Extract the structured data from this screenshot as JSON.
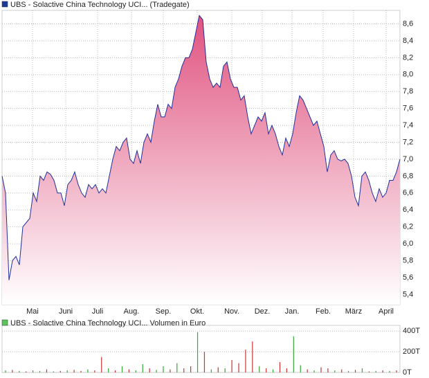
{
  "chart_data": [
    {
      "type": "area",
      "title": "UBS - Solactive China Technology UCI... (Tradegate)",
      "legend_color": "#1f3b9a",
      "color": "#1f2f9a",
      "fill_color": "#e0527f",
      "values": [
        6.8,
        6.6,
        5.57,
        5.8,
        5.85,
        5.75,
        6.2,
        6.25,
        6.3,
        6.6,
        6.5,
        6.8,
        6.75,
        6.85,
        6.82,
        6.75,
        6.6,
        6.6,
        6.45,
        6.7,
        6.75,
        6.85,
        6.7,
        6.6,
        6.55,
        6.7,
        6.65,
        6.7,
        6.6,
        6.65,
        6.6,
        6.8,
        7.0,
        7.15,
        7.1,
        7.2,
        7.25,
        7.0,
        6.95,
        7.1,
        6.95,
        7.2,
        7.3,
        7.2,
        7.45,
        7.65,
        7.5,
        7.5,
        7.65,
        7.6,
        7.85,
        7.95,
        8.1,
        8.2,
        8.2,
        8.3,
        8.5,
        8.7,
        8.65,
        8.15,
        7.95,
        7.85,
        7.9,
        7.85,
        8.1,
        8.15,
        7.95,
        7.85,
        7.85,
        7.7,
        7.75,
        7.5,
        7.3,
        7.4,
        7.5,
        7.45,
        7.55,
        7.3,
        7.4,
        7.3,
        7.15,
        7.05,
        7.25,
        7.15,
        7.3,
        7.55,
        7.75,
        7.7,
        7.6,
        7.5,
        7.4,
        7.45,
        7.3,
        7.15,
        6.85,
        7.05,
        7.1,
        7.0,
        6.98,
        7.0,
        6.95,
        6.8,
        6.55,
        6.45,
        6.8,
        6.85,
        6.75,
        6.6,
        6.5,
        6.65,
        6.55,
        6.6,
        6.75,
        6.75,
        6.85,
        7.0
      ],
      "ylim": [
        5.28,
        8.76
      ],
      "yticks": [
        {
          "value": 5.4,
          "label": "5,4"
        },
        {
          "value": 5.6,
          "label": "5,6"
        },
        {
          "value": 5.8,
          "label": "5,8"
        },
        {
          "value": 6.0,
          "label": "6,0"
        },
        {
          "value": 6.2,
          "label": "6,2"
        },
        {
          "value": 6.4,
          "label": "6,4"
        },
        {
          "value": 6.6,
          "label": "6,6"
        },
        {
          "value": 6.8,
          "label": "6,8"
        },
        {
          "value": 7.0,
          "label": "7,0"
        },
        {
          "value": 7.2,
          "label": "7,2"
        },
        {
          "value": 7.4,
          "label": "7,4"
        },
        {
          "value": 7.6,
          "label": "7,6"
        },
        {
          "value": 7.8,
          "label": "7,8"
        },
        {
          "value": 8.0,
          "label": "8,0"
        },
        {
          "value": 8.2,
          "label": "8,2"
        },
        {
          "value": 8.4,
          "label": "8,4"
        },
        {
          "value": 8.6,
          "label": "8,6"
        }
      ],
      "xlim": [
        0,
        115
      ],
      "xticks": [
        {
          "value": 8.8,
          "label": "Mai"
        },
        {
          "value": 18.4,
          "label": "Juni"
        },
        {
          "value": 27.6,
          "label": "Juli"
        },
        {
          "value": 37.4,
          "label": "Aug."
        },
        {
          "value": 46.6,
          "label": "Sep."
        },
        {
          "value": 56.4,
          "label": "Okt."
        },
        {
          "value": 66.4,
          "label": "Nov."
        },
        {
          "value": 75.2,
          "label": "Dez."
        },
        {
          "value": 83.8,
          "label": "Jan."
        },
        {
          "value": 92.8,
          "label": "Feb."
        },
        {
          "value": 101.6,
          "label": "März"
        },
        {
          "value": 111,
          "label": "April"
        }
      ],
      "grid": true
    },
    {
      "type": "bar",
      "title": "UBS - Solactive China Technology UCI... Volumen in Euro",
      "legend_color": "#5cc45c",
      "values": [
        20,
        25,
        15,
        10,
        20,
        15,
        30,
        10,
        15,
        20,
        25,
        15,
        30,
        20,
        150,
        40,
        20,
        60,
        30,
        20,
        80,
        40,
        25,
        60,
        30,
        90,
        40,
        60,
        390,
        200,
        30,
        50,
        40,
        120,
        90,
        220,
        300,
        60,
        40,
        30,
        100,
        40,
        350,
        70,
        30,
        20,
        50,
        40,
        20,
        30,
        15,
        25,
        40,
        10,
        15,
        20,
        15,
        20
      ],
      "colors": [
        "#33aa33",
        "#cc3333",
        "#33aa33",
        "#cc3333",
        "#33aa33",
        "#33aa33",
        "#cc3333",
        "#33aa33",
        "#cc3333",
        "#33aa33",
        "#cc3333",
        "#cc3333",
        "#33aa33",
        "#cc3333",
        "#cc3333",
        "#33aa33",
        "#cc3333",
        "#33aa33",
        "#cc3333",
        "#33aa33",
        "#33aa33",
        "#cc3333",
        "#33aa33",
        "#33aa33",
        "#cc3333",
        "#33aa33",
        "#cc3333",
        "#cc3333",
        "#33aa33",
        "#cc3333",
        "#33aa33",
        "#cc3333",
        "#33aa33",
        "#cc3333",
        "#cc3333",
        "#cc3333",
        "#cc3333",
        "#33aa33",
        "#cc3333",
        "#33aa33",
        "#cc3333",
        "#cc3333",
        "#33aa33",
        "#33aa33",
        "#cc3333",
        "#33aa33",
        "#cc3333",
        "#cc3333",
        "#33aa33",
        "#cc3333",
        "#33aa33",
        "#cc3333",
        "#33aa33",
        "#cc3333",
        "#33aa33",
        "#cc3333",
        "#33aa33",
        "#cc3333"
      ],
      "ylim": [
        0,
        455
      ],
      "yticks": [
        {
          "value": 0,
          "label": "0T"
        },
        {
          "value": 200,
          "label": "200T"
        },
        {
          "value": 400,
          "label": "400T"
        }
      ],
      "grid": true
    }
  ]
}
